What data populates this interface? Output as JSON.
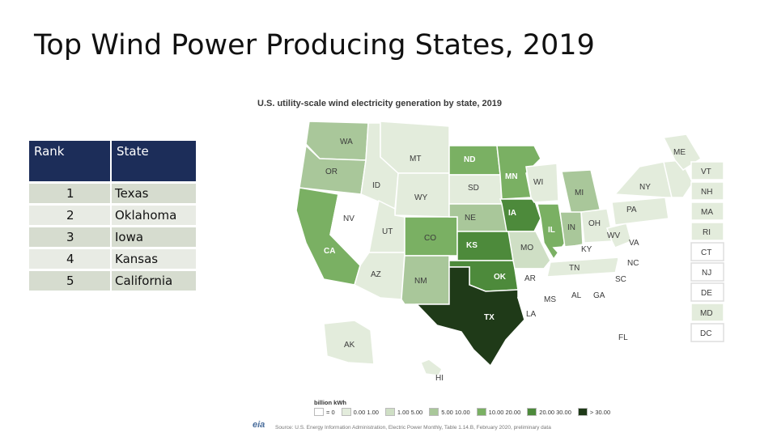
{
  "slide": {
    "title": "Top Wind Power Producing States, 2019"
  },
  "table": {
    "headers": {
      "rank": "Rank",
      "state": "State"
    },
    "rows": [
      {
        "rank": "1",
        "state": "Texas"
      },
      {
        "rank": "2",
        "state": "Oklahoma"
      },
      {
        "rank": "3",
        "state": "Iowa"
      },
      {
        "rank": "4",
        "state": "Kansas"
      },
      {
        "rank": "5",
        "state": "California"
      }
    ]
  },
  "map": {
    "title": "U.S. utility-scale wind electricity generation by state, 2019",
    "colors": {
      "c0": "#ffffff",
      "c1": "#e3ecdc",
      "c2": "#cfdfc5",
      "c3": "#a9c79a",
      "c4": "#7ab063",
      "c5": "#4d8a3b",
      "c6": "#1f3a18"
    },
    "states": [
      "WA",
      "OR",
      "CA",
      "NV",
      "ID",
      "MT",
      "WY",
      "UT",
      "AZ",
      "CO",
      "NM",
      "ND",
      "SD",
      "NE",
      "KS",
      "OK",
      "TX",
      "MN",
      "IA",
      "MO",
      "AR",
      "LA",
      "WI",
      "IL",
      "MI",
      "IN",
      "OH",
      "KY",
      "TN",
      "MS",
      "AL",
      "GA",
      "FL",
      "SC",
      "NC",
      "VA",
      "WV",
      "PA",
      "NY",
      "ME",
      "AK",
      "HI",
      "VT",
      "NH",
      "MA",
      "RI",
      "CT",
      "NJ",
      "DE",
      "MD",
      "DC"
    ],
    "legend_title": "billion kWh",
    "legend": [
      "= 0",
      "0.00  1.00",
      "1.00  5.00",
      "5.00  10.00",
      "10.00  20.00",
      "20.00  30.00",
      "> 30.00"
    ],
    "logo": "eia",
    "source": "Source: U.S. Energy Information Administration, Electric Power Monthly, Table 1.14.B, February 2020, preliminary data"
  }
}
